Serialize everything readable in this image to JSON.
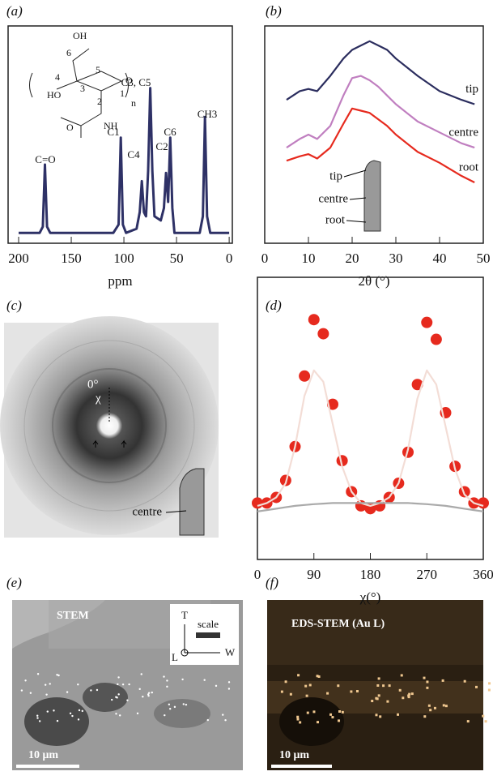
{
  "panel_labels": [
    "(a)",
    "(b)",
    "(c)",
    "(d)",
    "(e)",
    "(f)"
  ],
  "chart_data": [
    {
      "type": "line",
      "xlabel": "ppm",
      "x": [
        200,
        180,
        177,
        175,
        173,
        170,
        110,
        105,
        103,
        101,
        98,
        88,
        85,
        83,
        81,
        79,
        77,
        75,
        73,
        71,
        65,
        62,
        60,
        58,
        56,
        54,
        52,
        45,
        28,
        25,
        23,
        21,
        18,
        5,
        0
      ],
      "series": [
        {
          "color": "#2e3166",
          "values": [
            0,
            0,
            3,
            33,
            3,
            0,
            0,
            4,
            46,
            4,
            0,
            2,
            10,
            25,
            10,
            8,
            30,
            70,
            30,
            8,
            6,
            12,
            29,
            15,
            46,
            12,
            0,
            0,
            0,
            8,
            56,
            8,
            0,
            0,
            0
          ]
        }
      ],
      "xlim": [
        210,
        -3
      ],
      "xticks": [
        200,
        150,
        100,
        50,
        0
      ],
      "ylim": [
        -5,
        100
      ],
      "annotations": [
        "C=O",
        "C1",
        "C4",
        "C3, C5",
        "C2",
        "C6",
        "CH3"
      ],
      "structure_labels": [
        "OH",
        "6",
        "5",
        "O",
        "4",
        "3",
        "2",
        "1",
        "HO",
        "NH",
        "O",
        "n"
      ]
    },
    {
      "type": "line",
      "xlabel": "2θ (°)",
      "x": [
        5,
        8,
        10,
        12,
        15,
        18,
        20,
        22,
        24,
        26,
        28,
        30,
        35,
        40,
        45,
        48
      ],
      "series": [
        {
          "name": "tip",
          "color": "#2b2d5e",
          "values": [
            66,
            70,
            71,
            70,
            77,
            85,
            89,
            91,
            93,
            91,
            89,
            85,
            77,
            70,
            66,
            64
          ]
        },
        {
          "name": "centre",
          "color": "#c07fc0",
          "values": [
            44,
            48,
            50,
            48,
            54,
            68,
            76,
            77,
            75,
            72,
            68,
            64,
            56,
            51,
            46,
            44
          ]
        },
        {
          "name": "root",
          "color": "#e62a1e",
          "values": [
            38,
            40,
            41,
            39,
            44,
            55,
            62,
            61,
            60,
            57,
            54,
            50,
            42,
            37,
            31,
            28
          ]
        }
      ],
      "xlim": [
        0,
        50
      ],
      "xticks": [
        0,
        10,
        20,
        30,
        40,
        50
      ],
      "ylim": [
        0,
        100
      ],
      "annotations": [
        "tip",
        "centre",
        "root"
      ]
    },
    {
      "type": "line",
      "xlabel": "χ(°)",
      "x": [
        0,
        15,
        30,
        45,
        60,
        75,
        90,
        105,
        120,
        135,
        150,
        165,
        180,
        195,
        210,
        225,
        240,
        255,
        270,
        285,
        300,
        315,
        330,
        345,
        360
      ],
      "series": [
        {
          "mode": "markers",
          "color": "#e62a1e",
          "values": [
            20,
            20,
            22,
            28,
            40,
            65,
            85,
            80,
            55,
            35,
            24,
            19,
            18,
            19,
            22,
            27,
            38,
            62,
            84,
            78,
            52,
            33,
            24,
            20,
            20
          ]
        },
        {
          "mode": "line",
          "color": "#f3ddd6",
          "values": [
            19,
            20,
            22,
            27,
            40,
            58,
            67,
            63,
            48,
            33,
            24,
            20,
            19,
            20,
            22,
            27,
            39,
            57,
            67,
            62,
            47,
            32,
            23,
            20,
            19
          ]
        },
        {
          "mode": "line",
          "color": "#aaaaaa",
          "values": [
            17,
            17.5,
            18,
            18.5,
            19,
            19.3,
            19.6,
            19.8,
            20,
            20,
            20,
            20,
            20,
            20,
            20,
            20,
            20,
            19.8,
            19.6,
            19.3,
            19,
            18.5,
            18,
            17.5,
            17
          ]
        }
      ],
      "xlim": [
        0,
        360
      ],
      "xticks": [
        0,
        90,
        180,
        270,
        360
      ],
      "ylim": [
        0,
        100
      ]
    }
  ],
  "image_c": {
    "annotations": [
      "0°",
      "χ",
      "centre"
    ]
  },
  "image_e": {
    "title": "STEM",
    "axes": [
      "T",
      "W",
      "L"
    ],
    "scale": "scale",
    "scale_bar": "10 μm"
  },
  "image_f": {
    "title": "EDS-STEM (Au L)",
    "scale_bar": "10 μm"
  }
}
